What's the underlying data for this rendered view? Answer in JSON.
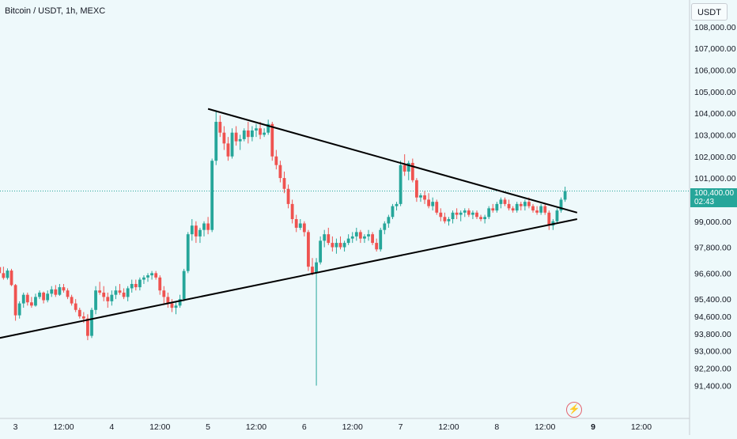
{
  "header": {
    "title": "Bitcoin / USDT, 1h, MEXC",
    "currency": "USDT"
  },
  "price_tag": {
    "price": "100,400.00",
    "countdown": "02:43"
  },
  "colors": {
    "up": "#26a69a",
    "down": "#ef5350",
    "background": "#eef9fb",
    "pattern_line": "#000000"
  },
  "icons": {
    "watermark": "lightning-logo-icon"
  },
  "chart_data": {
    "type": "candlestick",
    "symbol": "Bitcoin / USDT",
    "interval": "1h",
    "exchange": "MEXC",
    "y_axis": {
      "side": "right",
      "ticks": [
        "108,000.00",
        "107,000.00",
        "106,000.00",
        "105,000.00",
        "104,000.00",
        "103,000.00",
        "102,000.00",
        "101,000.00",
        "99,000.00",
        "97,800.00",
        "96,600.00",
        "95,400.00",
        "94,600.00",
        "93,800.00",
        "93,000.00",
        "92,200.00",
        "91,400.00"
      ],
      "ylim": [
        91000,
        108600
      ]
    },
    "x_axis": {
      "ticks": [
        "3",
        "12:00",
        "4",
        "12:00",
        "5",
        "12:00",
        "6",
        "12:00",
        "7",
        "12:00",
        "8",
        "12:00",
        "9",
        "12:00"
      ],
      "bold_ticks": [
        "9"
      ],
      "xlim": [
        "2 Jun 20:00",
        "9 Jun 14:00"
      ]
    },
    "current_price": 100400,
    "current_price_line": "dotted",
    "grid": false,
    "ohlc": [
      [
        96880,
        96920,
        96480,
        96600
      ],
      [
        96600,
        96900,
        96300,
        96380
      ],
      [
        96380,
        96820,
        96300,
        96720
      ],
      [
        96720,
        96800,
        96000,
        96050
      ],
      [
        96050,
        96100,
        94400,
        94650
      ],
      [
        94650,
        95300,
        94500,
        95200
      ],
      [
        95200,
        95700,
        95000,
        95600
      ],
      [
        95600,
        95700,
        95100,
        95250
      ],
      [
        95250,
        95500,
        95000,
        95100
      ],
      [
        95100,
        95650,
        95050,
        95500
      ],
      [
        95500,
        95800,
        95400,
        95700
      ],
      [
        95700,
        95750,
        95200,
        95350
      ],
      [
        95350,
        95800,
        95250,
        95650
      ],
      [
        95650,
        96000,
        95500,
        95850
      ],
      [
        95850,
        96050,
        95500,
        95600
      ],
      [
        95600,
        96100,
        95550,
        95950
      ],
      [
        95950,
        96100,
        95700,
        95800
      ],
      [
        95800,
        95900,
        95400,
        95500
      ],
      [
        95500,
        95600,
        95100,
        95200
      ],
      [
        95200,
        95400,
        94800,
        94900
      ],
      [
        94900,
        95000,
        94500,
        94600
      ],
      [
        94600,
        94800,
        94300,
        94500
      ],
      [
        94500,
        94700,
        93500,
        93700
      ],
      [
        93700,
        95000,
        93600,
        94900
      ],
      [
        94900,
        96000,
        94700,
        95800
      ],
      [
        95800,
        96200,
        95600,
        95700
      ],
      [
        95700,
        96000,
        95300,
        95500
      ],
      [
        95500,
        95700,
        95000,
        95300
      ],
      [
        95300,
        95800,
        95100,
        95600
      ],
      [
        95600,
        96000,
        95400,
        95800
      ],
      [
        95800,
        96100,
        95600,
        95700
      ],
      [
        95700,
        95900,
        95400,
        95500
      ],
      [
        95500,
        96000,
        95300,
        95900
      ],
      [
        95900,
        96300,
        95700,
        96100
      ],
      [
        96100,
        96300,
        95800,
        95950
      ],
      [
        95950,
        96400,
        95800,
        96300
      ],
      [
        96300,
        96500,
        96100,
        96400
      ],
      [
        96400,
        96600,
        96200,
        96500
      ],
      [
        96500,
        96700,
        96300,
        96600
      ],
      [
        96600,
        96700,
        96300,
        96400
      ],
      [
        96400,
        96500,
        95600,
        95800
      ],
      [
        95800,
        96000,
        95200,
        95500
      ],
      [
        95500,
        95700,
        95000,
        95200
      ],
      [
        95200,
        95400,
        94800,
        95000
      ],
      [
        95000,
        95300,
        94700,
        95100
      ],
      [
        95100,
        95600,
        95000,
        95400
      ],
      [
        95400,
        96800,
        95300,
        96700
      ],
      [
        96700,
        98500,
        96600,
        98400
      ],
      [
        98400,
        99100,
        98100,
        98800
      ],
      [
        98800,
        99000,
        98000,
        98300
      ],
      [
        98300,
        98700,
        98000,
        98600
      ],
      [
        98600,
        99000,
        98300,
        98900
      ],
      [
        98900,
        99200,
        98400,
        98600
      ],
      [
        98600,
        101900,
        98500,
        101800
      ],
      [
        101800,
        104100,
        101600,
        103600
      ],
      [
        103600,
        103900,
        102900,
        103100
      ],
      [
        103100,
        103400,
        102300,
        102600
      ],
      [
        102600,
        102900,
        101800,
        102000
      ],
      [
        102000,
        103300,
        101900,
        103100
      ],
      [
        103100,
        103400,
        102500,
        102700
      ],
      [
        102700,
        103000,
        102300,
        102800
      ],
      [
        102800,
        103300,
        102700,
        103200
      ],
      [
        103200,
        103600,
        102600,
        102900
      ],
      [
        102900,
        103400,
        102700,
        103200
      ],
      [
        103200,
        103500,
        102900,
        103300
      ],
      [
        103300,
        103600,
        102800,
        103000
      ],
      [
        103000,
        103300,
        102900,
        103100
      ],
      [
        103100,
        103700,
        103000,
        103500
      ],
      [
        103500,
        103600,
        101800,
        102000
      ],
      [
        102000,
        102300,
        101400,
        101600
      ],
      [
        101600,
        101800,
        100800,
        101000
      ],
      [
        101000,
        101300,
        100300,
        100500
      ],
      [
        100500,
        100700,
        99600,
        99800
      ],
      [
        99800,
        100000,
        98900,
        99100
      ],
      [
        99100,
        99300,
        98500,
        98700
      ],
      [
        98700,
        99100,
        98600,
        98900
      ],
      [
        98900,
        99000,
        98300,
        98500
      ],
      [
        98500,
        98600,
        96700,
        96900
      ],
      [
        96900,
        97300,
        96500,
        96600
      ],
      [
        96600,
        97300,
        91400,
        97100
      ],
      [
        97100,
        98300,
        97000,
        98100
      ],
      [
        98100,
        98600,
        97800,
        98400
      ],
      [
        98400,
        98700,
        97900,
        98000
      ],
      [
        98000,
        98300,
        97600,
        97800
      ],
      [
        97800,
        98200,
        97500,
        98000
      ],
      [
        98000,
        98300,
        97700,
        97800
      ],
      [
        97800,
        98100,
        97600,
        98000
      ],
      [
        98000,
        98400,
        97900,
        98200
      ],
      [
        98200,
        98500,
        98000,
        98300
      ],
      [
        98300,
        98700,
        98100,
        98500
      ],
      [
        98500,
        98600,
        98000,
        98200
      ],
      [
        98200,
        98400,
        98000,
        98300
      ],
      [
        98300,
        98600,
        98100,
        98400
      ],
      [
        98400,
        98500,
        97900,
        98000
      ],
      [
        98000,
        98200,
        97600,
        97700
      ],
      [
        97700,
        98700,
        97600,
        98600
      ],
      [
        98600,
        99000,
        98400,
        98900
      ],
      [
        98900,
        99300,
        98700,
        99200
      ],
      [
        99200,
        99800,
        99100,
        99700
      ],
      [
        99700,
        99900,
        99500,
        99800
      ],
      [
        99800,
        101800,
        99700,
        101600
      ],
      [
        101600,
        102100,
        101100,
        101300
      ],
      [
        101300,
        101800,
        100900,
        101700
      ],
      [
        101700,
        101900,
        100800,
        100900
      ],
      [
        100900,
        101000,
        99900,
        100100
      ],
      [
        100100,
        100300,
        99900,
        100200
      ],
      [
        100200,
        100400,
        99800,
        100000
      ],
      [
        100000,
        100300,
        99600,
        99700
      ],
      [
        99700,
        100100,
        99500,
        99900
      ],
      [
        99900,
        100000,
        99300,
        99400
      ],
      [
        99400,
        99600,
        99000,
        99200
      ],
      [
        99200,
        99400,
        98900,
        99000
      ],
      [
        99000,
        99200,
        98800,
        99100
      ],
      [
        99100,
        99500,
        98900,
        99400
      ],
      [
        99400,
        99600,
        99100,
        99300
      ],
      [
        99300,
        99500,
        99000,
        99400
      ],
      [
        99400,
        99600,
        99200,
        99500
      ],
      [
        99500,
        99600,
        99200,
        99300
      ],
      [
        99300,
        99500,
        99100,
        99400
      ],
      [
        99400,
        99500,
        99100,
        99200
      ],
      [
        99200,
        99300,
        99000,
        99100
      ],
      [
        99100,
        99300,
        98900,
        99200
      ],
      [
        99200,
        99700,
        99100,
        99600
      ],
      [
        99600,
        99800,
        99400,
        99500
      ],
      [
        99500,
        99900,
        99400,
        99800
      ],
      [
        99800,
        100100,
        99600,
        100000
      ],
      [
        100000,
        100100,
        99700,
        99800
      ],
      [
        99800,
        100000,
        99500,
        99600
      ],
      [
        99600,
        99700,
        99400,
        99500
      ],
      [
        99500,
        99900,
        99400,
        99800
      ],
      [
        99800,
        99900,
        99500,
        99700
      ],
      [
        99700,
        100000,
        99500,
        99900
      ],
      [
        99900,
        100100,
        99600,
        99700
      ],
      [
        99700,
        99800,
        99400,
        99500
      ],
      [
        99500,
        99700,
        99300,
        99400
      ],
      [
        99400,
        99800,
        99300,
        99700
      ],
      [
        99700,
        99800,
        99300,
        99400
      ],
      [
        99400,
        99500,
        98600,
        98800
      ],
      [
        98800,
        99100,
        98600,
        99000
      ],
      [
        99000,
        99600,
        98900,
        99500
      ],
      [
        99500,
        100100,
        99400,
        100000
      ],
      [
        100000,
        100600,
        99900,
        100400
      ]
    ],
    "trendlines": [
      {
        "name": "upper",
        "from": [
          "5 Jun 00:00",
          104200
        ],
        "to": [
          "8 Jun 20:00",
          99400
        ]
      },
      {
        "name": "lower",
        "from": [
          "2 Jun 20:00",
          93600
        ],
        "to": [
          "8 Jun 20:00",
          99100
        ]
      }
    ]
  }
}
